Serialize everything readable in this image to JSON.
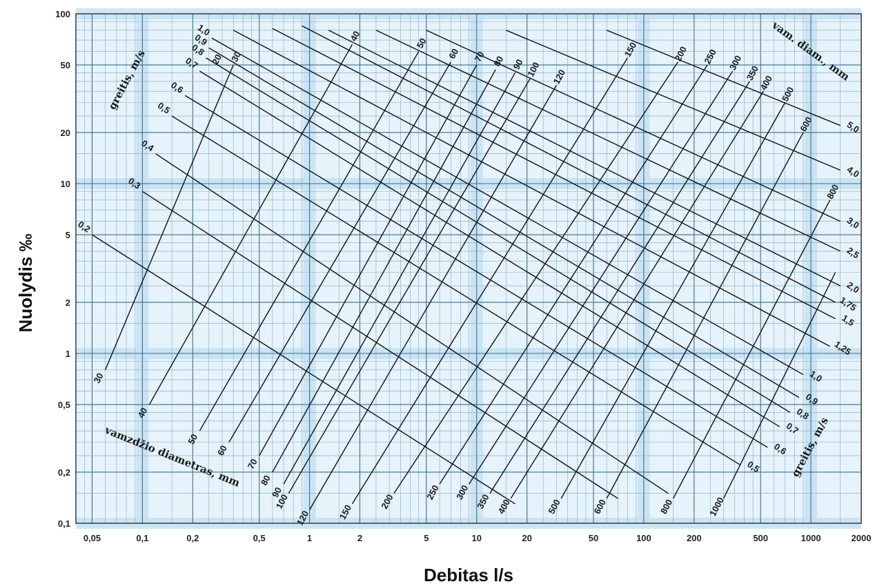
{
  "chart_data": {
    "type": "line",
    "title": "",
    "xlabel": "Debitas l/s",
    "ylabel": "Nuolydis ‰",
    "x_scale": "log",
    "y_scale": "log",
    "xlim": [
      0.04,
      2000
    ],
    "ylim": [
      0.1,
      100
    ],
    "grid": true,
    "x_tick_labels": [
      "0,05",
      "0,1",
      "0,2",
      "0,5",
      "1",
      "2",
      "5",
      "10",
      "20",
      "50",
      "100",
      "200",
      "500",
      "1000",
      "2000"
    ],
    "x_ticks": [
      0.05,
      0.1,
      0.2,
      0.5,
      1,
      2,
      5,
      10,
      20,
      50,
      100,
      200,
      500,
      1000,
      2000
    ],
    "y_tick_labels": [
      "0,1",
      "0,2",
      "0,5",
      "1",
      "2",
      "5",
      "10",
      "20",
      "50",
      "100"
    ],
    "y_ticks": [
      0.1,
      0.2,
      0.5,
      1,
      2,
      5,
      10,
      20,
      50,
      100
    ],
    "diameter_scale": {
      "title_left": "vamzdžio diametras, mm",
      "title_right": "vam. diam., mm",
      "unit": "mm",
      "bottom_labels": [
        "30",
        "40",
        "50",
        "60",
        "70",
        "80",
        "90",
        "100",
        "120",
        "150",
        "200",
        "250",
        "300",
        "350",
        "400",
        "500",
        "600",
        "800",
        "1000"
      ],
      "top_labels": [
        "20",
        "30",
        "40",
        "50",
        "60",
        "70",
        "80",
        "90",
        "100",
        "120",
        "150",
        "200",
        "250",
        "300",
        "350",
        "400",
        "500",
        "600",
        "800"
      ]
    },
    "velocity_scale": {
      "title_left": "greitis, m/s",
      "title_right": "greitis, m/s",
      "unit": "m/s",
      "left_labels": [
        "0,2",
        "0,3",
        "0,4",
        "0,5",
        "0,6",
        "0,7",
        "0,8",
        "0,9",
        "1,0"
      ],
      "right_labels": [
        "0,5",
        "0,6",
        "0,7",
        "0,8",
        "0,9",
        "1,0",
        "1,25",
        "1,5",
        "1,75",
        "2,0",
        "2,5",
        "3,0",
        "4,0",
        "5,0"
      ]
    },
    "series": [
      {
        "family": "diameter",
        "label": "30",
        "points": [
          [
            0.35,
            50
          ],
          [
            0.06,
            0.8
          ]
        ]
      },
      {
        "family": "diameter",
        "label": "40",
        "points": [
          [
            1.8,
            66
          ],
          [
            0.11,
            0.5
          ]
        ]
      },
      {
        "family": "diameter",
        "label": "50",
        "points": [
          [
            4.5,
            60
          ],
          [
            0.22,
            0.35
          ]
        ]
      },
      {
        "family": "diameter",
        "label": "60",
        "points": [
          [
            7,
            52
          ],
          [
            0.33,
            0.3
          ]
        ]
      },
      {
        "family": "diameter",
        "label": "70",
        "points": [
          [
            10,
            50
          ],
          [
            0.5,
            0.25
          ]
        ]
      },
      {
        "family": "diameter",
        "label": "80",
        "points": [
          [
            13,
            47
          ],
          [
            0.6,
            0.2
          ]
        ]
      },
      {
        "family": "diameter",
        "label": "90",
        "points": [
          [
            17,
            45
          ],
          [
            0.7,
            0.17
          ]
        ]
      },
      {
        "family": "diameter",
        "label": "100",
        "points": [
          [
            21,
            42
          ],
          [
            0.75,
            0.15
          ]
        ]
      },
      {
        "family": "diameter",
        "label": "120",
        "points": [
          [
            30,
            38
          ],
          [
            1,
            0.12
          ]
        ]
      },
      {
        "family": "diameter",
        "label": "150",
        "points": [
          [
            80,
            55
          ],
          [
            1.8,
            0.13
          ]
        ]
      },
      {
        "family": "diameter",
        "label": "200",
        "points": [
          [
            160,
            52
          ],
          [
            3.2,
            0.15
          ]
        ]
      },
      {
        "family": "diameter",
        "label": "250",
        "points": [
          [
            240,
            50
          ],
          [
            6,
            0.17
          ]
        ]
      },
      {
        "family": "diameter",
        "label": "300",
        "points": [
          [
            340,
            46
          ],
          [
            9,
            0.17
          ]
        ]
      },
      {
        "family": "diameter",
        "label": "350",
        "points": [
          [
            430,
            40
          ],
          [
            12,
            0.15
          ]
        ]
      },
      {
        "family": "diameter",
        "label": "400",
        "points": [
          [
            520,
            35
          ],
          [
            16,
            0.14
          ]
        ]
      },
      {
        "family": "diameter",
        "label": "500",
        "points": [
          [
            700,
            30
          ],
          [
            32,
            0.14
          ]
        ]
      },
      {
        "family": "diameter",
        "label": "600",
        "points": [
          [
            900,
            20
          ],
          [
            60,
            0.14
          ]
        ]
      },
      {
        "family": "diameter",
        "label": "800",
        "points": [
          [
            1300,
            8
          ],
          [
            150,
            0.14
          ]
        ]
      },
      {
        "family": "diameter",
        "label": "1000",
        "points": [
          [
            1400,
            3
          ],
          [
            300,
            0.14
          ]
        ]
      },
      {
        "family": "velocity",
        "label": "0,2",
        "points": [
          [
            0.05,
            5
          ],
          [
            17,
            0.13
          ]
        ]
      },
      {
        "family": "velocity",
        "label": "0,3",
        "points": [
          [
            0.1,
            9
          ],
          [
            70,
            0.14
          ]
        ]
      },
      {
        "family": "velocity",
        "label": "0,4",
        "points": [
          [
            0.12,
            15
          ],
          [
            140,
            0.15
          ]
        ]
      },
      {
        "family": "velocity",
        "label": "0,5",
        "points": [
          [
            0.15,
            25
          ],
          [
            380,
            0.22
          ]
        ]
      },
      {
        "family": "velocity",
        "label": "0,6",
        "points": [
          [
            0.18,
            33
          ],
          [
            550,
            0.28
          ]
        ]
      },
      {
        "family": "velocity",
        "label": "0,7",
        "points": [
          [
            0.22,
            46
          ],
          [
            650,
            0.37
          ]
        ]
      },
      {
        "family": "velocity",
        "label": "0,8",
        "points": [
          [
            0.24,
            55
          ],
          [
            750,
            0.45
          ]
        ]
      },
      {
        "family": "velocity",
        "label": "0,9",
        "points": [
          [
            0.25,
            63
          ],
          [
            850,
            0.55
          ]
        ]
      },
      {
        "family": "velocity",
        "label": "1,0",
        "points": [
          [
            0.26,
            72
          ],
          [
            900,
            0.75
          ]
        ]
      },
      {
        "family": "velocity",
        "label": "1,25",
        "points": [
          [
            0.35,
            80
          ],
          [
            1300,
            1.1
          ]
        ]
      },
      {
        "family": "velocity",
        "label": "1,5",
        "points": [
          [
            0.6,
            82
          ],
          [
            1400,
            1.6
          ]
        ]
      },
      {
        "family": "velocity",
        "label": "1,75",
        "points": [
          [
            0.9,
            85
          ],
          [
            1400,
            2
          ]
        ]
      },
      {
        "family": "velocity",
        "label": "2,0",
        "points": [
          [
            1.3,
            80
          ],
          [
            1500,
            2.5
          ]
        ]
      },
      {
        "family": "velocity",
        "label": "2,5",
        "points": [
          [
            2.5,
            80
          ],
          [
            1500,
            4
          ]
        ]
      },
      {
        "family": "velocity",
        "label": "3,0",
        "points": [
          [
            5,
            80
          ],
          [
            1500,
            6
          ]
        ]
      },
      {
        "family": "velocity",
        "label": "4,0",
        "points": [
          [
            15,
            80
          ],
          [
            1500,
            12
          ]
        ]
      },
      {
        "family": "velocity",
        "label": "5,0",
        "points": [
          [
            60,
            80
          ],
          [
            1500,
            22
          ]
        ]
      }
    ]
  }
}
